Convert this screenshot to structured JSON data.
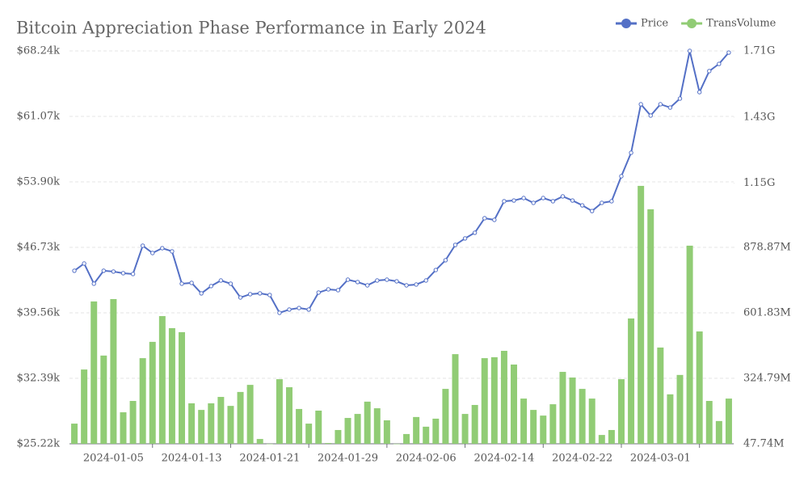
{
  "chart_data": {
    "type": "bar-line",
    "title": "Bitcoin Appreciation Phase Performance in Early 2024",
    "categories": [
      null,
      null,
      null,
      null,
      "2024-01-05",
      null,
      null,
      null,
      null,
      null,
      null,
      null,
      "2024-01-13",
      null,
      null,
      null,
      null,
      null,
      null,
      null,
      "2024-01-21",
      null,
      null,
      null,
      null,
      null,
      null,
      null,
      "2024-01-29",
      null,
      null,
      null,
      null,
      null,
      null,
      null,
      "2024-02-06",
      null,
      null,
      null,
      null,
      null,
      null,
      null,
      "2024-02-14",
      null,
      null,
      null,
      null,
      null,
      null,
      null,
      "2024-02-22",
      null,
      null,
      null,
      null,
      null,
      null,
      null,
      "2024-03-01",
      null,
      null,
      null,
      null,
      null,
      null,
      null
    ],
    "series": [
      {
        "name": "Price",
        "type": "line",
        "color": "#5470c6",
        "values": [
          44170,
          44960,
          42750,
          44170,
          44080,
          43900,
          43810,
          46910,
          46110,
          46640,
          46290,
          42750,
          42840,
          41690,
          42490,
          43100,
          42750,
          41240,
          41600,
          41690,
          41510,
          39560,
          39920,
          40090,
          39920,
          41780,
          42130,
          42040,
          43190,
          42930,
          42570,
          43100,
          43190,
          43010,
          42570,
          42660,
          43100,
          44250,
          45320,
          47000,
          47710,
          48330,
          49920,
          49740,
          51780,
          51860,
          52130,
          51600,
          52130,
          51780,
          52310,
          51860,
          51330,
          50710,
          51600,
          51780,
          54520,
          57090,
          62400,
          61160,
          62400,
          62040,
          63020,
          68240,
          63730,
          66030,
          66820,
          68060
        ]
      },
      {
        "name": "TransVolume",
        "type": "bar",
        "axis": "y2",
        "color": "#91cc75",
        "values": [
          133000000,
          362000000,
          650000000,
          421000000,
          660000000,
          181000000,
          229000000,
          410000000,
          479000000,
          588000000,
          537000000,
          520000000,
          219000000,
          191000000,
          219000000,
          246000000,
          208000000,
          267000000,
          297000000,
          68000000,
          48000000,
          321000000,
          287000000,
          195000000,
          133000000,
          188000000,
          51000000,
          106000000,
          157000000,
          174000000,
          226000000,
          198000000,
          147000000,
          48000000,
          89000000,
          161000000,
          120000000,
          154000000,
          280000000,
          427000000,
          174000000,
          212000000,
          410000000,
          414000000,
          441000000,
          383000000,
          239000000,
          191000000,
          167000000,
          215000000,
          352000000,
          328000000,
          280000000,
          239000000,
          85000000,
          106000000,
          321000000,
          578000000,
          1139000000,
          1040000000,
          455000000,
          257000000,
          339000000,
          886000000,
          523000000,
          229000000,
          144000000,
          239000000
        ]
      }
    ],
    "ylim": [
      25220,
      68240
    ],
    "yticks": [
      {
        "value": 25220,
        "label": "$25.22k"
      },
      {
        "value": 32390,
        "label": "$32.39k"
      },
      {
        "value": 39560,
        "label": "$39.56k"
      },
      {
        "value": 46730,
        "label": "$46.73k"
      },
      {
        "value": 53900,
        "label": "$53.90k"
      },
      {
        "value": 61070,
        "label": "$61.07k"
      },
      {
        "value": 68240,
        "label": "$68.24k"
      }
    ],
    "y2lim": [
      47740000,
      1710000000
    ],
    "y2ticks": [
      {
        "value": 47740000,
        "label": "47.74M"
      },
      {
        "value": 324790000,
        "label": "324.79M"
      },
      {
        "value": 601830000,
        "label": "601.83M"
      },
      {
        "value": 878870000,
        "label": "878.87M"
      },
      {
        "value": 1150000000,
        "label": "1.15G"
      },
      {
        "value": 1430000000,
        "label": "1.43G"
      },
      {
        "value": 1710000000,
        "label": "1.71G"
      }
    ],
    "grid": true,
    "legend": "top-right"
  }
}
